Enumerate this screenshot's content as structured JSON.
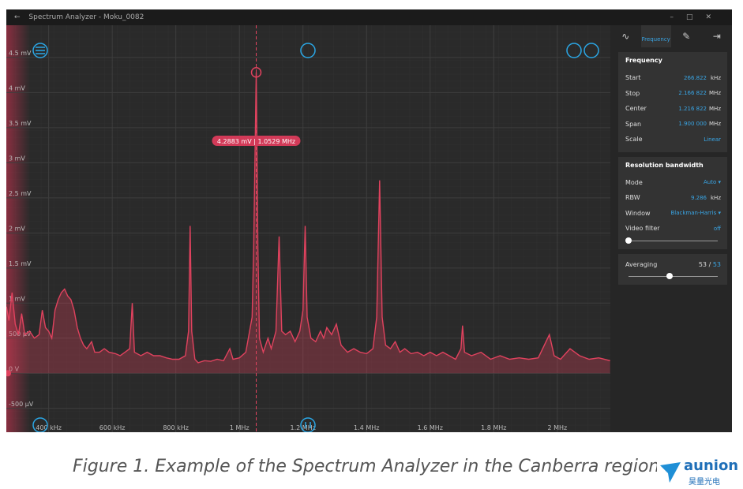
{
  "window": {
    "title": "Spectrum Analyzer - Moku_0082"
  },
  "tab": "Frequency",
  "plot": {
    "xlim": [
      266.822,
      2166.822
    ],
    "ylim": [
      -0.84,
      4.96
    ],
    "xticks": [
      {
        "value": 400,
        "label": "400 kHz"
      },
      {
        "value": 600,
        "label": "600 kHz"
      },
      {
        "value": 800,
        "label": "800 kHz"
      },
      {
        "value": 1000,
        "label": "1 MHz"
      },
      {
        "value": 1200,
        "label": "1.2 MHz"
      },
      {
        "value": 1400,
        "label": "1.4 MHz"
      },
      {
        "value": 1600,
        "label": "1.6 MHz"
      },
      {
        "value": 1800,
        "label": "1.8 MHz"
      },
      {
        "value": 2000,
        "label": "2 MHz"
      }
    ],
    "yticks": [
      {
        "value": 4.5,
        "label": "4.5 mV"
      },
      {
        "value": 4,
        "label": "4 mV"
      },
      {
        "value": 3.5,
        "label": "3.5 mV"
      },
      {
        "value": 3,
        "label": "3 mV"
      },
      {
        "value": 2.5,
        "label": "2.5 mV"
      },
      {
        "value": 2,
        "label": "2 mV"
      },
      {
        "value": 1.5,
        "label": "1.5 mV"
      },
      {
        "value": 1,
        "label": "1 mV"
      },
      {
        "value": 0.5,
        "label": "500 µV"
      },
      {
        "value": 0,
        "label": "0 V"
      },
      {
        "value": -0.5,
        "label": "-500 µV"
      }
    ],
    "color": "#e0425e",
    "trace": {
      "x": [
        267,
        275,
        285,
        295,
        305,
        315,
        325,
        340,
        355,
        370,
        380,
        390,
        400,
        410,
        420,
        430,
        440,
        450,
        460,
        470,
        480,
        490,
        500,
        510,
        520,
        535,
        545,
        560,
        575,
        590,
        610,
        625,
        640,
        655,
        663,
        670,
        690,
        710,
        730,
        750,
        770,
        790,
        810,
        830,
        840,
        845,
        850,
        860,
        870,
        890,
        910,
        930,
        950,
        970,
        980,
        1000,
        1020,
        1040,
        1045,
        1052.9,
        1058,
        1063,
        1075,
        1090,
        1100,
        1115,
        1125,
        1133,
        1145,
        1160,
        1175,
        1190,
        1200,
        1207,
        1213,
        1225,
        1240,
        1255,
        1265,
        1275,
        1290,
        1305,
        1320,
        1340,
        1360,
        1380,
        1400,
        1420,
        1432,
        1441,
        1449,
        1460,
        1475,
        1490,
        1505,
        1520,
        1540,
        1560,
        1580,
        1600,
        1620,
        1640,
        1660,
        1680,
        1697,
        1702,
        1708,
        1730,
        1760,
        1790,
        1820,
        1850,
        1880,
        1910,
        1940,
        1975,
        1990,
        2010,
        2040,
        2055,
        2070,
        2100,
        2130,
        2166
      ],
      "y": [
        0.95,
        0.75,
        1.15,
        0.7,
        0.55,
        0.85,
        0.55,
        0.6,
        0.5,
        0.55,
        0.9,
        0.65,
        0.6,
        0.5,
        0.9,
        1.05,
        1.15,
        1.2,
        1.1,
        1.05,
        0.9,
        0.65,
        0.5,
        0.4,
        0.35,
        0.45,
        0.3,
        0.3,
        0.35,
        0.3,
        0.28,
        0.25,
        0.3,
        0.35,
        1.0,
        0.3,
        0.25,
        0.3,
        0.25,
        0.25,
        0.22,
        0.2,
        0.2,
        0.25,
        0.6,
        2.1,
        0.6,
        0.2,
        0.15,
        0.18,
        0.17,
        0.2,
        0.18,
        0.35,
        0.2,
        0.22,
        0.3,
        0.8,
        1.8,
        4.2883,
        1.8,
        0.5,
        0.3,
        0.5,
        0.35,
        0.6,
        1.95,
        0.6,
        0.55,
        0.6,
        0.45,
        0.6,
        0.9,
        2.1,
        0.8,
        0.5,
        0.45,
        0.6,
        0.5,
        0.65,
        0.55,
        0.7,
        0.4,
        0.3,
        0.35,
        0.3,
        0.28,
        0.35,
        0.8,
        2.75,
        0.8,
        0.4,
        0.35,
        0.45,
        0.3,
        0.35,
        0.28,
        0.3,
        0.25,
        0.3,
        0.25,
        0.3,
        0.25,
        0.2,
        0.35,
        0.68,
        0.3,
        0.25,
        0.3,
        0.2,
        0.25,
        0.2,
        0.22,
        0.2,
        0.22,
        0.55,
        0.25,
        0.2,
        0.35,
        0.3,
        0.25,
        0.2,
        0.22,
        0.18
      ]
    },
    "marker": {
      "label": "4.2883 mV | 1.0529 MHz",
      "x": 1052.9,
      "y": 4.2883
    }
  },
  "frequency": {
    "title": "Frequency",
    "rows": [
      {
        "label": "Start",
        "value": "266.822",
        "unit": "kHz"
      },
      {
        "label": "Stop",
        "value": "2.166 822",
        "unit": "MHz"
      },
      {
        "label": "Center",
        "value": "1.216 822",
        "unit": "MHz"
      },
      {
        "label": "Span",
        "value": "1.900 000",
        "unit": "MHz"
      },
      {
        "label": "Scale",
        "value": "Linear"
      }
    ]
  },
  "resolution": {
    "title": "Resolution bandwidth",
    "rows": [
      {
        "label": "Mode",
        "value": "Auto ▾"
      },
      {
        "label": "RBW",
        "value": "9.286",
        "unit": "kHz"
      },
      {
        "label": "Window",
        "value": "Blackman-Harris ▾"
      },
      {
        "label": "Video filter",
        "value": "off"
      }
    ]
  },
  "averaging": {
    "label": "Averaging",
    "value": "53",
    "separator": "/",
    "total": "53"
  },
  "caption": "Figure 1. Example of the Spectrum Analyzer in the Canberra region",
  "logo": {
    "name": "aunion",
    "subtitle": "昊量光电"
  }
}
